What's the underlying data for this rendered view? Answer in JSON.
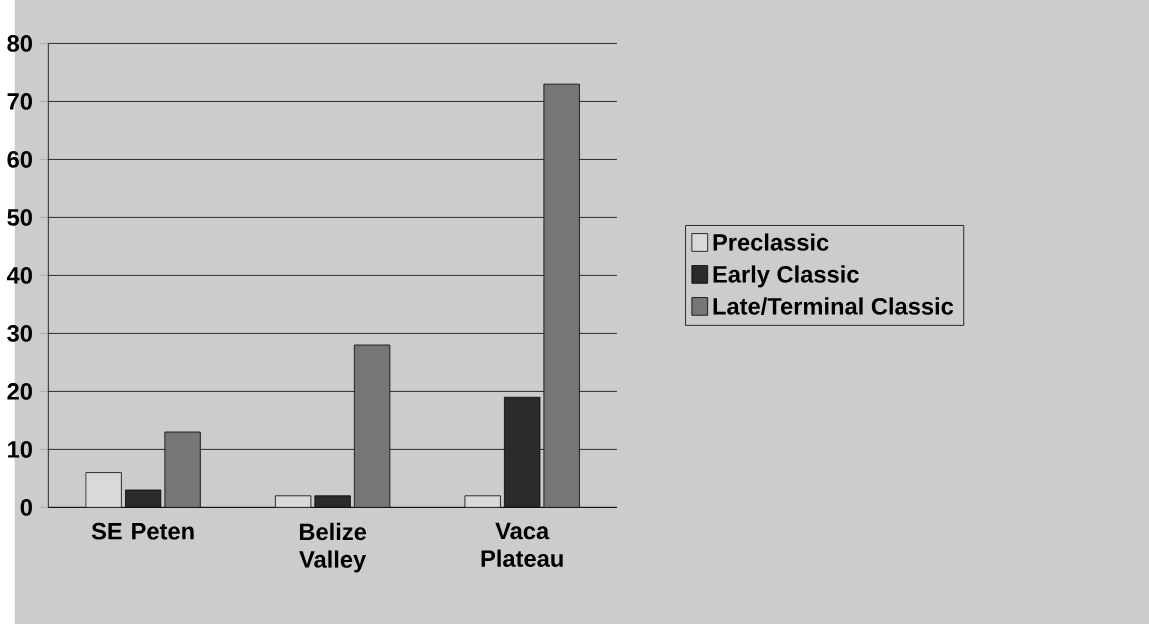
{
  "chart_data": {
    "type": "bar",
    "categories": [
      "SE Peten",
      "Belize Valley",
      "Vaca Plateau"
    ],
    "series": [
      {
        "name": "Preclassic",
        "color": "#d9d9d9",
        "values": [
          6,
          2,
          2
        ]
      },
      {
        "name": "Early Classic",
        "color": "#2b2b2b",
        "values": [
          3,
          2,
          19
        ]
      },
      {
        "name": "Late/Terminal Classic",
        "color": "#767676",
        "values": [
          13,
          28,
          73
        ]
      }
    ],
    "ylim": [
      0,
      80
    ],
    "yticks": [
      0,
      10,
      20,
      30,
      40,
      50,
      60,
      70,
      80
    ],
    "grid": "y",
    "legend": "right"
  }
}
